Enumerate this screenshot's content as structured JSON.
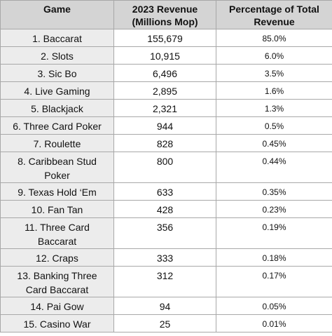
{
  "table": {
    "columns": [
      "Game",
      "2023 Revenue (Millions Mop)",
      "Percentage of Total Revenue"
    ],
    "rows": [
      [
        "1. Baccarat",
        "155,679",
        "85.0%"
      ],
      [
        "2. Slots",
        "10,915",
        "6.0%"
      ],
      [
        "3. Sic Bo",
        "6,496",
        "3.5%"
      ],
      [
        "4. Live Gaming",
        "2,895",
        "1.6%"
      ],
      [
        "5. Blackjack",
        "2,321",
        "1.3%"
      ],
      [
        "6. Three Card Poker",
        "944",
        "0.5%"
      ],
      [
        "7. Roulette",
        "828",
        "0.45%"
      ],
      [
        "8. Caribbean Stud Poker",
        "800",
        "0.44%"
      ],
      [
        "9. Texas Hold ‘Em",
        "633",
        "0.35%"
      ],
      [
        "10. Fan Tan",
        "428",
        "0.23%"
      ],
      [
        "11. Three Card Baccarat",
        "356",
        "0.19%"
      ],
      [
        "12. Craps",
        "333",
        "0.18%"
      ],
      [
        "13. Banking Three Card Baccarat",
        "312",
        "0.17%"
      ],
      [
        "14. Pai Gow",
        "94",
        "0.05%"
      ],
      [
        "15. Casino War",
        "25",
        "0.01%"
      ]
    ]
  }
}
